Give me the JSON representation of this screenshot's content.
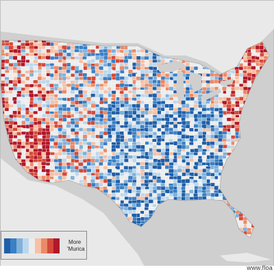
{
  "legend": {
    "label_line1": "More",
    "label_line2": "'Murica",
    "colors": [
      "#1f5fa8",
      "#3b7fc4",
      "#7fb1da",
      "#bcd7ec",
      "#ececec",
      "#f6c1a6",
      "#ec8a68",
      "#d44a3a",
      "#b2182b"
    ]
  },
  "credit": "www.floa",
  "colors": {
    "background": "#cfcfcf",
    "land": "#e9e9e9",
    "border": "#ffffff",
    "blue_strong": "#1f5fa8",
    "red_strong": "#b2182b"
  }
}
